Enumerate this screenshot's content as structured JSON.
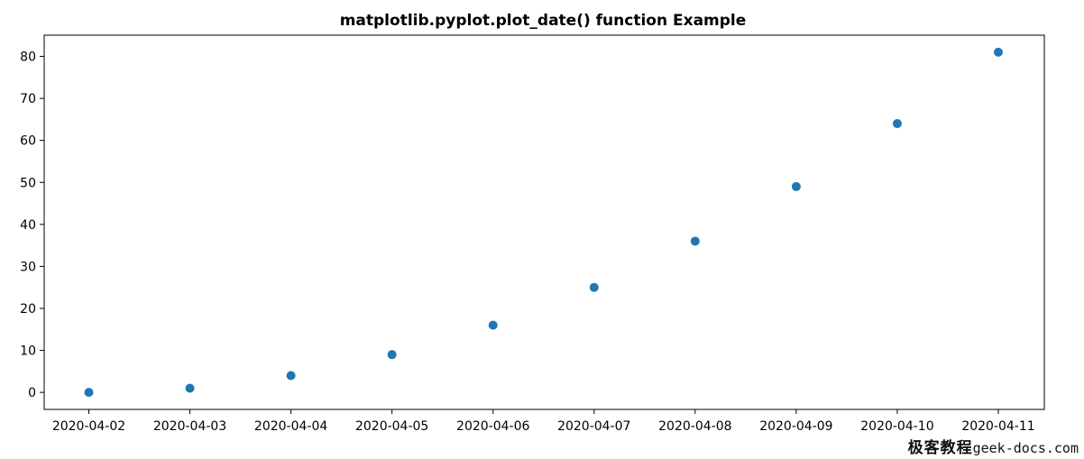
{
  "chart_data": {
    "type": "scatter",
    "title": "matplotlib.pyplot.plot_date() function Example",
    "xlabel": "",
    "ylabel": "",
    "x": [
      "2020-04-02",
      "2020-04-03",
      "2020-04-04",
      "2020-04-05",
      "2020-04-06",
      "2020-04-07",
      "2020-04-08",
      "2020-04-09",
      "2020-04-10",
      "2020-04-11"
    ],
    "y": [
      0,
      1,
      4,
      9,
      16,
      25,
      36,
      49,
      64,
      81
    ],
    "x_tick_labels": [
      "2020-04-02",
      "2020-04-03",
      "2020-04-04",
      "2020-04-05",
      "2020-04-06",
      "2020-04-07",
      "2020-04-08",
      "2020-04-09",
      "2020-04-10",
      "2020-04-11"
    ],
    "y_ticks": [
      0,
      10,
      20,
      30,
      40,
      50,
      60,
      70,
      80
    ],
    "ylim": [
      -4.05,
      85.05
    ],
    "grid": false,
    "marker_color": "#1f77b4"
  },
  "watermark": {
    "cjk": "极客教程",
    "site": "geek-docs.com"
  }
}
